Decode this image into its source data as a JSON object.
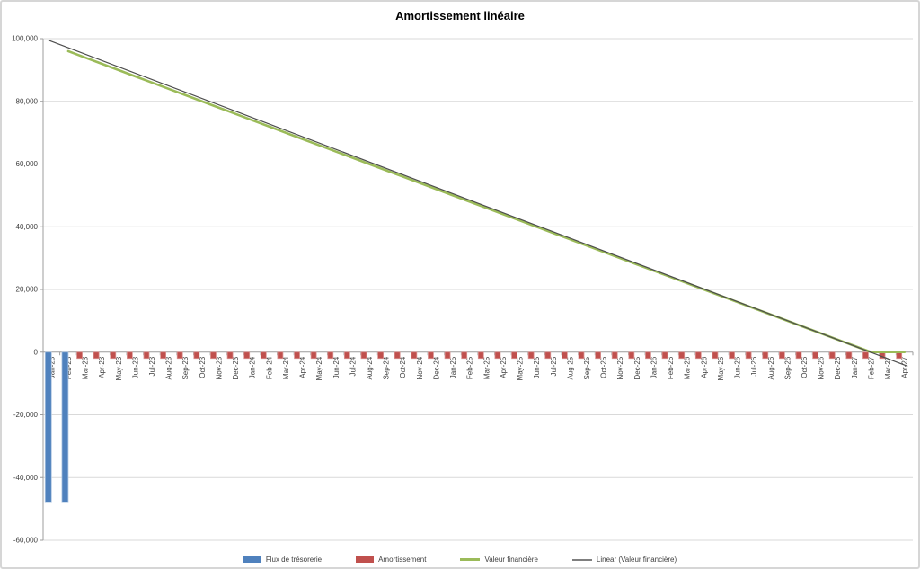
{
  "chart_data": {
    "type": "combo",
    "title": "Amortissement linéaire",
    "legend_position": "bottom",
    "categories": [
      "Jan-23",
      "Feb-23",
      "Mar-23",
      "Apr-23",
      "May-23",
      "Jun-23",
      "Jul-23",
      "Aug-23",
      "Sep-23",
      "Oct-23",
      "Nov-23",
      "Dec-23",
      "Jan-24",
      "Feb-24",
      "Mar-24",
      "Apr-24",
      "May-24",
      "Jun-24",
      "Jul-24",
      "Aug-24",
      "Sep-24",
      "Oct-24",
      "Nov-24",
      "Dec-24",
      "Jan-25",
      "Feb-25",
      "Mar-25",
      "Apr-25",
      "May-25",
      "Jun-25",
      "Jul-25",
      "Aug-25",
      "Sep-25",
      "Oct-25",
      "Nov-25",
      "Dec-25",
      "Jan-26",
      "Feb-26",
      "Mar-26",
      "Apr-26",
      "May-26",
      "Jun-26",
      "Jul-26",
      "Aug-26",
      "Sep-26",
      "Oct-26",
      "Nov-26",
      "Dec-26",
      "Jan-27",
      "Feb-27",
      "Mar-27",
      "Apr-27"
    ],
    "y_axis": {
      "min": -60000,
      "max": 100000,
      "step": 20000,
      "grid": true,
      "tick_labels": [
        "100,000",
        "80,000",
        "60,000",
        "40,000",
        "20,000",
        "0",
        "-20,000",
        "-40,000",
        "-60,000"
      ]
    },
    "series": [
      {
        "name": "Flux de trésorerie",
        "type": "bar",
        "color": "#4F81BD",
        "edge_color": "#AEC6E2",
        "values": [
          -48000,
          -48000,
          null,
          null,
          null,
          null,
          null,
          null,
          null,
          null,
          null,
          null,
          null,
          null,
          null,
          null,
          null,
          null,
          null,
          null,
          null,
          null,
          null,
          null,
          null,
          null,
          null,
          null,
          null,
          null,
          null,
          null,
          null,
          null,
          null,
          null,
          null,
          null,
          null,
          null,
          null,
          null,
          null,
          null,
          null,
          null,
          null,
          null,
          null,
          null,
          null,
          null
        ]
      },
      {
        "name": "Amortissement",
        "type": "bar",
        "color": "#C0504D",
        "edge_color": "#D99694",
        "values": [
          null,
          null,
          -2000,
          -2000,
          -2000,
          -2000,
          -2000,
          -2000,
          -2000,
          -2000,
          -2000,
          -2000,
          -2000,
          -2000,
          -2000,
          -2000,
          -2000,
          -2000,
          -2000,
          -2000,
          -2000,
          -2000,
          -2000,
          -2000,
          -2000,
          -2000,
          -2000,
          -2000,
          -2000,
          -2000,
          -2000,
          -2000,
          -2000,
          -2000,
          -2000,
          -2000,
          -2000,
          -2000,
          -2000,
          -2000,
          -2000,
          -2000,
          -2000,
          -2000,
          -2000,
          -2000,
          -2000,
          -2000,
          -2000,
          -2000,
          -2000,
          -2000
        ]
      },
      {
        "name": "Valeur financière",
        "type": "line",
        "color": "#9BBB59",
        "values": [
          null,
          96000,
          94000,
          92000,
          90000,
          88000,
          86000,
          84000,
          82000,
          80000,
          78000,
          76000,
          74000,
          72000,
          70000,
          68000,
          66000,
          64000,
          62000,
          60000,
          58000,
          56000,
          54000,
          52000,
          50000,
          48000,
          46000,
          44000,
          42000,
          40000,
          38000,
          36000,
          34000,
          32000,
          30000,
          28000,
          26000,
          24000,
          22000,
          20000,
          18000,
          16000,
          14000,
          12000,
          10000,
          8000,
          6000,
          4000,
          2000,
          0,
          0,
          0
        ]
      },
      {
        "name": "Linear (Valeur financière)",
        "type": "trendline",
        "color": "#4D4D4D",
        "legend_color": "#7F7F7F",
        "start": {
          "category": "Jan-23",
          "value": 99500
        },
        "end": {
          "category": "Apr-27",
          "value": -4500
        }
      }
    ],
    "style": {
      "gridline_color": "#D9D9D9",
      "axis_color": "#9C9C9C",
      "text_color": "#404040"
    }
  }
}
